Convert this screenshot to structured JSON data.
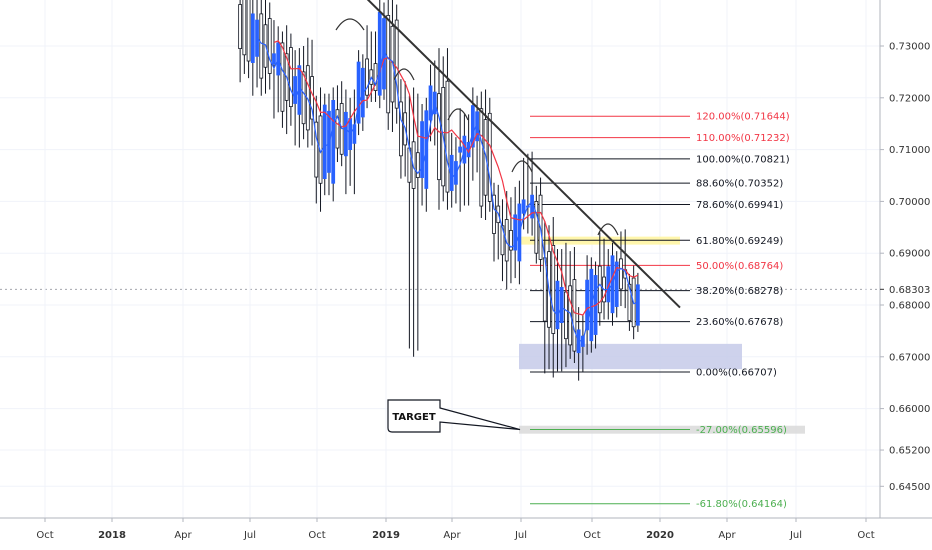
{
  "chart_data": {
    "type": "candlestick",
    "price_axis": {
      "ticks": [
        0.73,
        0.72,
        0.71,
        0.7,
        0.69,
        0.68,
        0.67,
        0.66,
        0.652,
        0.645
      ],
      "tick_labels": [
        "0.73000",
        "0.72000",
        "0.71000",
        "0.70000",
        "0.69000",
        "0.68000",
        "0.67000",
        "0.66000",
        "0.65200",
        "0.64500"
      ],
      "range": [
        0.6375,
        0.7395
      ],
      "current_price": 0.68303,
      "current_price_label": "0.68303"
    },
    "time_axis": {
      "labels": [
        {
          "label": "Oct",
          "date": "2017-10"
        },
        {
          "label": "2018",
          "date": "2018-01"
        },
        {
          "label": "Apr",
          "date": "2018-04"
        },
        {
          "label": "Jul",
          "date": "2018-07"
        },
        {
          "label": "Oct",
          "date": "2018-10"
        },
        {
          "label": "2019",
          "date": "2019-01"
        },
        {
          "label": "Apr",
          "date": "2019-04"
        },
        {
          "label": "Jul",
          "date": "2019-07"
        },
        {
          "label": "Oct",
          "date": "2019-10"
        },
        {
          "label": "2020",
          "date": "2020-01"
        },
        {
          "label": "Apr",
          "date": "2020-04"
        },
        {
          "label": "Jul",
          "date": "2020-07"
        },
        {
          "label": "Oct",
          "date": "2020-10"
        }
      ],
      "bold_labels": [
        "2018",
        "2019",
        "2020"
      ]
    },
    "candles_sample": [
      [
        0.7395,
        0.7395,
        0.725,
        0.728
      ],
      [
        0.728,
        0.7395,
        0.722,
        0.735
      ],
      [
        0.735,
        0.738,
        0.722,
        0.725
      ],
      [
        0.725,
        0.733,
        0.718,
        0.73
      ],
      [
        0.73,
        0.732,
        0.715,
        0.718
      ],
      [
        0.718,
        0.728,
        0.712,
        0.725
      ],
      [
        0.725,
        0.73,
        0.712,
        0.715
      ],
      [
        0.715,
        0.72,
        0.7,
        0.705
      ],
      [
        0.705,
        0.72,
        0.702,
        0.718
      ],
      [
        0.718,
        0.722,
        0.708,
        0.71
      ],
      [
        0.71,
        0.72,
        0.703,
        0.716
      ],
      [
        0.716,
        0.728,
        0.714,
        0.726
      ],
      [
        0.726,
        0.732,
        0.72,
        0.722
      ],
      [
        0.722,
        0.738,
        0.72,
        0.735
      ],
      [
        0.735,
        0.738,
        0.715,
        0.718
      ],
      [
        0.718,
        0.722,
        0.706,
        0.71
      ],
      [
        0.71,
        0.72,
        0.672,
        0.704
      ],
      [
        0.704,
        0.718,
        0.7,
        0.716
      ],
      [
        0.716,
        0.726,
        0.712,
        0.722
      ],
      [
        0.722,
        0.728,
        0.7,
        0.703
      ],
      [
        0.703,
        0.712,
        0.7,
        0.708
      ],
      [
        0.708,
        0.716,
        0.7,
        0.712
      ],
      [
        0.712,
        0.72,
        0.706,
        0.717
      ],
      [
        0.717,
        0.72,
        0.698,
        0.7
      ],
      [
        0.7,
        0.702,
        0.69,
        0.695
      ],
      [
        0.695,
        0.7,
        0.685,
        0.69
      ],
      [
        0.69,
        0.702,
        0.686,
        0.698
      ],
      [
        0.698,
        0.708,
        0.695,
        0.7
      ],
      [
        0.7,
        0.703,
        0.688,
        0.69
      ],
      [
        0.69,
        0.695,
        0.668,
        0.676
      ],
      [
        0.676,
        0.69,
        0.668,
        0.684
      ],
      [
        0.684,
        0.69,
        0.67,
        0.672
      ],
      [
        0.672,
        0.678,
        0.667,
        0.674
      ],
      [
        0.674,
        0.688,
        0.672,
        0.686
      ],
      [
        0.686,
        0.692,
        0.678,
        0.68
      ],
      [
        0.68,
        0.69,
        0.678,
        0.688
      ],
      [
        0.688,
        0.693,
        0.681,
        0.684
      ],
      [
        0.684,
        0.686,
        0.675,
        0.677
      ],
      [
        0.677,
        0.685,
        0.676,
        0.683
      ]
    ],
    "moving_averages": [
      {
        "color": "#f23645",
        "role": "slow EMA"
      },
      {
        "color": "#2962ff",
        "role": "fast EMA"
      }
    ],
    "trendline": {
      "color": "#333333",
      "from": {
        "date": "2018-11",
        "price": 0.7395
      },
      "to": {
        "date": "2019-12",
        "price": 0.6795
      }
    },
    "fibonacci": [
      {
        "label": "120.00%(0.71644)",
        "price": 0.71644,
        "color": "#f23645"
      },
      {
        "label": "110.00%(0.71232)",
        "price": 0.71232,
        "color": "#f23645"
      },
      {
        "label": "100.00%(0.70821)",
        "price": 0.70821,
        "color": "#131722"
      },
      {
        "label": "88.60%(0.70352)",
        "price": 0.70352,
        "color": "#131722"
      },
      {
        "label": "78.60%(0.69941)",
        "price": 0.69941,
        "color": "#131722"
      },
      {
        "label": "61.80%(0.69249)",
        "price": 0.69249,
        "color": "#131722"
      },
      {
        "label": "50.00%(0.68764)",
        "price": 0.68764,
        "color": "#f23645"
      },
      {
        "label": "38.20%(0.68278)",
        "price": 0.68278,
        "color": "#131722"
      },
      {
        "label": "23.60%(0.67678)",
        "price": 0.67678,
        "color": "#131722"
      },
      {
        "label": "0.00%(0.66707)",
        "price": 0.66707,
        "color": "#131722"
      },
      {
        "label": "-27.00%(0.65596)",
        "price": 0.65596,
        "color": "#4caf50"
      },
      {
        "label": "-61.80%(0.64164)",
        "price": 0.64164,
        "color": "#4caf50"
      }
    ],
    "zones": [
      {
        "color": "#fff59d",
        "range": [
          0.6918,
          0.6932
        ]
      },
      {
        "color": "#c5cae9",
        "range": [
          0.6707,
          0.6725
        ]
      },
      {
        "color": "#d9d9d9",
        "range": [
          0.6552,
          0.6567
        ]
      }
    ],
    "annotation": {
      "text": "TARGET",
      "points_to_price": 0.65596
    }
  }
}
